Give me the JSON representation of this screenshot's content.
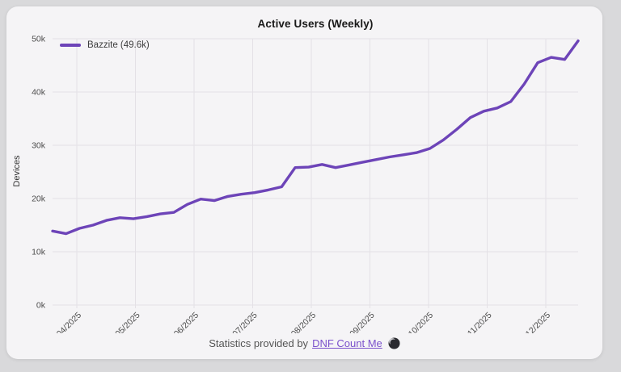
{
  "page": {
    "background": "#d9d9db",
    "card_background": "#f5f4f6"
  },
  "header": {
    "title": "Active Users (Weekly)"
  },
  "legend": {
    "label": "Bazzite (49.6k)",
    "color": "#6d44b8"
  },
  "axes": {
    "y_title": "Devices"
  },
  "footer": {
    "text": "Statistics provided by",
    "link_label": "DNF Count Me",
    "icon": "moon-icon"
  },
  "colors": {
    "line": "#6d44b8",
    "grid": "#e4e1e6",
    "tick_text": "#4c4c4c",
    "link": "#7b52cc"
  },
  "chart_data": {
    "type": "line",
    "title": "Active Users (Weekly)",
    "xlabel": "",
    "ylabel": "Devices",
    "x_unit": "week",
    "grid": true,
    "legend_position": "top-left",
    "ylim": [
      0,
      50
    ],
    "y_tick_values": [
      0,
      10,
      20,
      30,
      40,
      50
    ],
    "y_tick_labels": [
      "0k",
      "10k",
      "20k",
      "30k",
      "40k",
      "50k"
    ],
    "x_tick_labels": [
      "04/2025",
      "05/2025",
      "06/2025",
      "07/2025",
      "08/2025",
      "09/2025",
      "10/2025",
      "11/2025",
      "12/2025"
    ],
    "x_tick_positions": [
      1.8,
      6.15,
      10.5,
      14.85,
      19.2,
      23.55,
      27.9,
      32.25,
      36.6
    ],
    "series": [
      {
        "name": "Bazzite (49.6k)",
        "color": "#6d44b8",
        "unit": "thousand devices",
        "values": [
          13.9,
          13.4,
          14.4,
          15.0,
          15.9,
          16.4,
          16.2,
          16.6,
          17.1,
          17.4,
          18.9,
          19.9,
          19.6,
          20.4,
          20.8,
          21.1,
          21.6,
          22.2,
          25.8,
          25.9,
          26.4,
          25.8,
          26.3,
          26.8,
          27.3,
          27.8,
          28.2,
          28.6,
          29.4,
          31.0,
          33.0,
          35.2,
          36.4,
          37.0,
          38.2,
          41.5,
          45.5,
          46.5,
          46.1,
          49.6
        ]
      }
    ]
  }
}
